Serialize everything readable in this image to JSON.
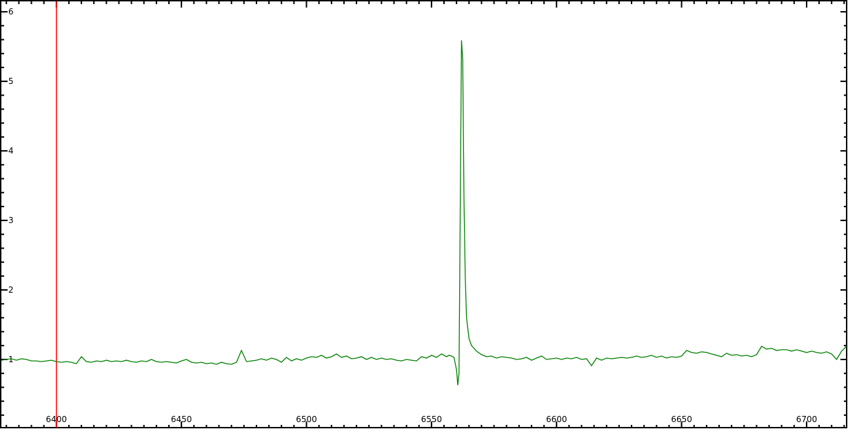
{
  "chart_data": {
    "type": "line",
    "title": "",
    "xlabel": "",
    "ylabel": "",
    "xlim": [
      6378,
      6716
    ],
    "ylim": [
      0.02,
      6.15
    ],
    "x_ticks": [
      6400,
      6450,
      6500,
      6550,
      6600,
      6650,
      6700
    ],
    "x_tick_labels": [
      "6400",
      "6450",
      "6500",
      "6550",
      "6600",
      "6650",
      "6700"
    ],
    "y_ticks": [
      1,
      2,
      3,
      4,
      5,
      6
    ],
    "y_tick_labels": [
      "1",
      "2",
      "3",
      "4",
      "5",
      "6"
    ],
    "x_minor_step": 5,
    "y_minor_step": 0.2,
    "grid": false,
    "line_color": "#008000",
    "marker_color": "#ff0000",
    "vertical_marker_x": 6400,
    "points": [
      [
        6378,
        0.99
      ],
      [
        6380,
        1.0
      ],
      [
        6382,
        1.01
      ],
      [
        6384,
        0.99
      ],
      [
        6386,
        1.01
      ],
      [
        6388,
        1.0
      ],
      [
        6390,
        0.98
      ],
      [
        6392,
        0.98
      ],
      [
        6394,
        0.97
      ],
      [
        6396,
        0.98
      ],
      [
        6398,
        0.99
      ],
      [
        6400,
        0.97
      ],
      [
        6402,
        0.96
      ],
      [
        6404,
        0.97
      ],
      [
        6406,
        0.96
      ],
      [
        6408,
        0.94
      ],
      [
        6410,
        1.04
      ],
      [
        6412,
        0.97
      ],
      [
        6414,
        0.96
      ],
      [
        6416,
        0.98
      ],
      [
        6418,
        0.97
      ],
      [
        6420,
        0.99
      ],
      [
        6422,
        0.97
      ],
      [
        6424,
        0.98
      ],
      [
        6426,
        0.97
      ],
      [
        6428,
        0.99
      ],
      [
        6430,
        0.97
      ],
      [
        6432,
        0.96
      ],
      [
        6434,
        0.98
      ],
      [
        6436,
        0.97
      ],
      [
        6438,
        1.0
      ],
      [
        6440,
        0.97
      ],
      [
        6442,
        0.96
      ],
      [
        6444,
        0.97
      ],
      [
        6446,
        0.96
      ],
      [
        6448,
        0.95
      ],
      [
        6450,
        0.98
      ],
      [
        6452,
        1.0
      ],
      [
        6454,
        0.96
      ],
      [
        6456,
        0.95
      ],
      [
        6458,
        0.96
      ],
      [
        6460,
        0.94
      ],
      [
        6462,
        0.95
      ],
      [
        6464,
        0.93
      ],
      [
        6466,
        0.96
      ],
      [
        6468,
        0.94
      ],
      [
        6470,
        0.93
      ],
      [
        6472,
        0.96
      ],
      [
        6474,
        1.13
      ],
      [
        6476,
        0.97
      ],
      [
        6478,
        0.98
      ],
      [
        6480,
        0.99
      ],
      [
        6482,
        1.01
      ],
      [
        6484,
        0.99
      ],
      [
        6486,
        1.02
      ],
      [
        6488,
        1.0
      ],
      [
        6490,
        0.96
      ],
      [
        6492,
        1.03
      ],
      [
        6494,
        0.98
      ],
      [
        6496,
        1.01
      ],
      [
        6498,
        0.99
      ],
      [
        6500,
        1.02
      ],
      [
        6502,
        1.04
      ],
      [
        6504,
        1.03
      ],
      [
        6506,
        1.06
      ],
      [
        6508,
        1.02
      ],
      [
        6510,
        1.04
      ],
      [
        6512,
        1.08
      ],
      [
        6514,
        1.03
      ],
      [
        6516,
        1.05
      ],
      [
        6518,
        1.01
      ],
      [
        6520,
        1.02
      ],
      [
        6522,
        1.04
      ],
      [
        6524,
        1.0
      ],
      [
        6526,
        1.03
      ],
      [
        6528,
        1.0
      ],
      [
        6530,
        1.02
      ],
      [
        6532,
        1.0
      ],
      [
        6534,
        1.01
      ],
      [
        6536,
        0.99
      ],
      [
        6538,
        0.98
      ],
      [
        6540,
        1.0
      ],
      [
        6542,
        0.99
      ],
      [
        6544,
        0.98
      ],
      [
        6546,
        1.04
      ],
      [
        6548,
        1.02
      ],
      [
        6550,
        1.06
      ],
      [
        6552,
        1.03
      ],
      [
        6554,
        1.08
      ],
      [
        6556,
        1.04
      ],
      [
        6557,
        1.06
      ],
      [
        6558,
        1.05
      ],
      [
        6559,
        1.03
      ],
      [
        6560,
        0.85
      ],
      [
        6560.5,
        0.63
      ],
      [
        6561,
        0.8
      ],
      [
        6561.5,
        3.2
      ],
      [
        6562,
        5.59
      ],
      [
        6562.5,
        5.3
      ],
      [
        6563,
        3.3
      ],
      [
        6563.5,
        2.2
      ],
      [
        6564,
        1.6
      ],
      [
        6565,
        1.3
      ],
      [
        6566,
        1.2
      ],
      [
        6568,
        1.12
      ],
      [
        6570,
        1.07
      ],
      [
        6572,
        1.04
      ],
      [
        6574,
        1.05
      ],
      [
        6576,
        1.02
      ],
      [
        6578,
        1.04
      ],
      [
        6580,
        1.03
      ],
      [
        6582,
        1.02
      ],
      [
        6584,
        1.0
      ],
      [
        6586,
        1.01
      ],
      [
        6588,
        1.03
      ],
      [
        6590,
        0.99
      ],
      [
        6592,
        1.02
      ],
      [
        6594,
        1.05
      ],
      [
        6596,
        1.0
      ],
      [
        6598,
        1.01
      ],
      [
        6600,
        1.02
      ],
      [
        6602,
        1.0
      ],
      [
        6604,
        1.02
      ],
      [
        6606,
        1.01
      ],
      [
        6608,
        1.03
      ],
      [
        6610,
        1.0
      ],
      [
        6612,
        1.01
      ],
      [
        6614,
        0.91
      ],
      [
        6616,
        1.02
      ],
      [
        6618,
        0.99
      ],
      [
        6620,
        1.02
      ],
      [
        6622,
        1.01
      ],
      [
        6624,
        1.02
      ],
      [
        6626,
        1.03
      ],
      [
        6628,
        1.02
      ],
      [
        6630,
        1.03
      ],
      [
        6632,
        1.05
      ],
      [
        6634,
        1.03
      ],
      [
        6636,
        1.04
      ],
      [
        6638,
        1.06
      ],
      [
        6640,
        1.03
      ],
      [
        6642,
        1.05
      ],
      [
        6644,
        1.02
      ],
      [
        6646,
        1.04
      ],
      [
        6648,
        1.03
      ],
      [
        6650,
        1.05
      ],
      [
        6652,
        1.13
      ],
      [
        6654,
        1.1
      ],
      [
        6656,
        1.09
      ],
      [
        6658,
        1.11
      ],
      [
        6660,
        1.1
      ],
      [
        6662,
        1.08
      ],
      [
        6664,
        1.06
      ],
      [
        6666,
        1.04
      ],
      [
        6668,
        1.09
      ],
      [
        6670,
        1.06
      ],
      [
        6672,
        1.07
      ],
      [
        6674,
        1.05
      ],
      [
        6676,
        1.06
      ],
      [
        6678,
        1.04
      ],
      [
        6680,
        1.07
      ],
      [
        6682,
        1.19
      ],
      [
        6684,
        1.15
      ],
      [
        6686,
        1.16
      ],
      [
        6688,
        1.13
      ],
      [
        6690,
        1.14
      ],
      [
        6692,
        1.14
      ],
      [
        6694,
        1.12
      ],
      [
        6696,
        1.14
      ],
      [
        6698,
        1.12
      ],
      [
        6700,
        1.1
      ],
      [
        6702,
        1.12
      ],
      [
        6704,
        1.1
      ],
      [
        6706,
        1.09
      ],
      [
        6708,
        1.11
      ],
      [
        6710,
        1.08
      ],
      [
        6712,
        1.0
      ],
      [
        6714,
        1.12
      ],
      [
        6716,
        1.19
      ]
    ]
  }
}
